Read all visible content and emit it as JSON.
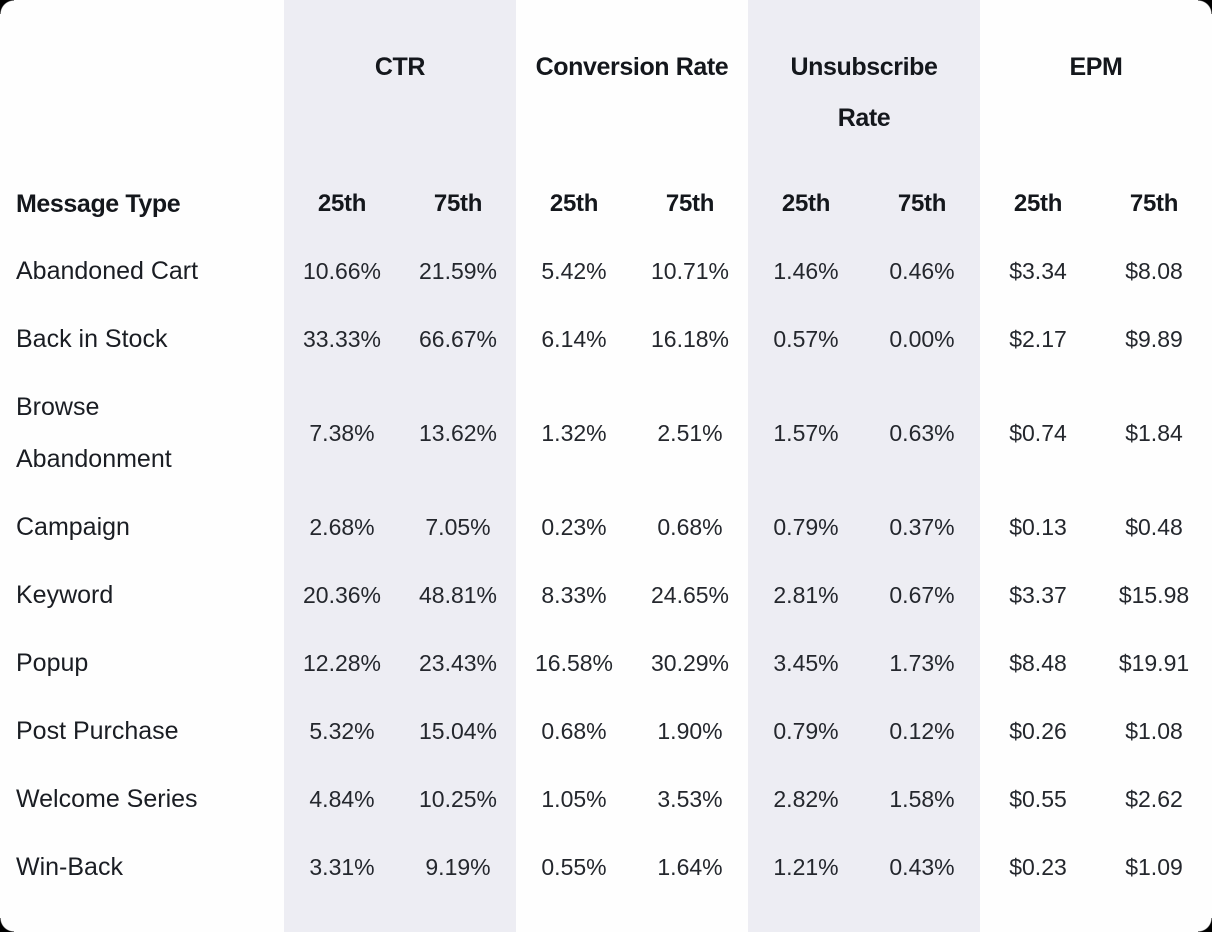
{
  "table": {
    "background_color": "#fefefe",
    "band_color": "#ededf3",
    "corner_mask_color": "#000000",
    "row_header_label": "Message Type",
    "percentile_headers": {
      "p25": "25th",
      "p75": "75th"
    },
    "groups": [
      {
        "label": "CTR"
      },
      {
        "label": "Conversion Rate"
      },
      {
        "label": "Unsubscribe Rate"
      },
      {
        "label": "EPM"
      }
    ],
    "rows": [
      {
        "label": "Abandoned Cart",
        "values": [
          "10.66%",
          "21.59%",
          "5.42%",
          "10.71%",
          "1.46%",
          "0.46%",
          "$3.34",
          "$8.08"
        ]
      },
      {
        "label": "Back in Stock",
        "values": [
          "33.33%",
          "66.67%",
          "6.14%",
          "16.18%",
          "0.57%",
          "0.00%",
          "$2.17",
          "$9.89"
        ]
      },
      {
        "label": "Browse Abandonment",
        "values": [
          "7.38%",
          "13.62%",
          "1.32%",
          "2.51%",
          "1.57%",
          "0.63%",
          "$0.74",
          "$1.84"
        ]
      },
      {
        "label": "Campaign",
        "values": [
          "2.68%",
          "7.05%",
          "0.23%",
          "0.68%",
          "0.79%",
          "0.37%",
          "$0.13",
          "$0.48"
        ]
      },
      {
        "label": "Keyword",
        "values": [
          "20.36%",
          "48.81%",
          "8.33%",
          "24.65%",
          "2.81%",
          "0.67%",
          "$3.37",
          "$15.98"
        ]
      },
      {
        "label": "Popup",
        "values": [
          "12.28%",
          "23.43%",
          "16.58%",
          "30.29%",
          "3.45%",
          "1.73%",
          "$8.48",
          "$19.91"
        ]
      },
      {
        "label": "Post Purchase",
        "values": [
          "5.32%",
          "15.04%",
          "0.68%",
          "1.90%",
          "0.79%",
          "0.12%",
          "$0.26",
          "$1.08"
        ]
      },
      {
        "label": "Welcome Series",
        "values": [
          "4.84%",
          "10.25%",
          "1.05%",
          "3.53%",
          "2.82%",
          "1.58%",
          "$0.55",
          "$2.62"
        ]
      },
      {
        "label": "Win-Back",
        "values": [
          "3.31%",
          "9.19%",
          "0.55%",
          "1.64%",
          "1.21%",
          "0.43%",
          "$0.23",
          "$1.09"
        ]
      }
    ]
  },
  "chart_data": {
    "type": "table",
    "title": "Message Type benchmark percentiles",
    "row_header": "Message Type",
    "column_groups": [
      "CTR",
      "Conversion Rate",
      "Unsubscribe Rate",
      "EPM"
    ],
    "sub_columns_per_group": [
      "25th",
      "75th"
    ],
    "categories": [
      "Abandoned Cart",
      "Back in Stock",
      "Browse Abandonment",
      "Campaign",
      "Keyword",
      "Popup",
      "Post Purchase",
      "Welcome Series",
      "Win-Back"
    ],
    "series": [
      {
        "name": "CTR 25th (%)",
        "values": [
          10.66,
          33.33,
          7.38,
          2.68,
          20.36,
          12.28,
          5.32,
          4.84,
          3.31
        ]
      },
      {
        "name": "CTR 75th (%)",
        "values": [
          21.59,
          66.67,
          13.62,
          7.05,
          48.81,
          23.43,
          15.04,
          10.25,
          9.19
        ]
      },
      {
        "name": "Conversion Rate 25th (%)",
        "values": [
          5.42,
          6.14,
          1.32,
          0.23,
          8.33,
          16.58,
          0.68,
          1.05,
          0.55
        ]
      },
      {
        "name": "Conversion Rate 75th (%)",
        "values": [
          10.71,
          16.18,
          2.51,
          0.68,
          24.65,
          30.29,
          1.9,
          3.53,
          1.64
        ]
      },
      {
        "name": "Unsubscribe Rate 25th (%)",
        "values": [
          1.46,
          0.57,
          1.57,
          0.79,
          2.81,
          3.45,
          0.79,
          2.82,
          1.21
        ]
      },
      {
        "name": "Unsubscribe Rate 75th (%)",
        "values": [
          0.46,
          0.0,
          0.63,
          0.37,
          0.67,
          1.73,
          0.12,
          1.58,
          0.43
        ]
      },
      {
        "name": "EPM 25th ($)",
        "values": [
          3.34,
          2.17,
          0.74,
          0.13,
          3.37,
          8.48,
          0.26,
          0.55,
          0.23
        ]
      },
      {
        "name": "EPM 75th ($)",
        "values": [
          8.08,
          9.89,
          1.84,
          0.48,
          15.98,
          19.91,
          1.08,
          2.62,
          1.09
        ]
      }
    ],
    "layout": "highlighted column bands behind CTR and Unsubscribe Rate groups; values centered in sub-columns"
  }
}
